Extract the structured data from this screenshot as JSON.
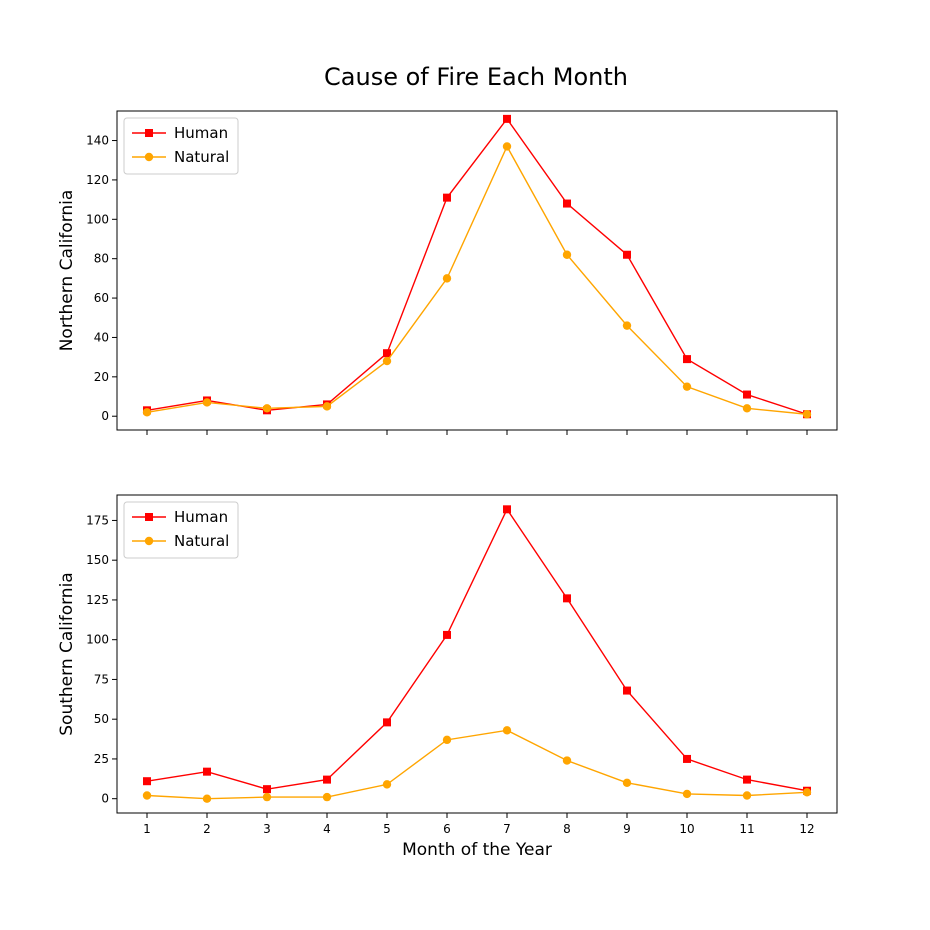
{
  "title": "Cause of Fire Each Month",
  "chart_data": [
    {
      "type": "line",
      "ylabel": "Northern California",
      "xlabel": "",
      "x": [
        1,
        2,
        3,
        4,
        5,
        6,
        7,
        8,
        9,
        10,
        11,
        12
      ],
      "xlim": [
        0.5,
        12.5
      ],
      "ylim": [
        -7,
        155
      ],
      "yticks": [
        0,
        20,
        40,
        60,
        80,
        100,
        120,
        140
      ],
      "show_x_tick_labels": false,
      "legend_position": "top-left",
      "series": [
        {
          "name": "Human",
          "color": "#ff0000",
          "marker": "square",
          "values": [
            3,
            8,
            3,
            6,
            32,
            111,
            151,
            108,
            82,
            29,
            11,
            1
          ]
        },
        {
          "name": "Natural",
          "color": "#ffa500",
          "marker": "circle",
          "values": [
            2,
            7,
            4,
            5,
            28,
            70,
            137,
            82,
            46,
            15,
            4,
            1
          ]
        }
      ]
    },
    {
      "type": "line",
      "ylabel": "Southern California",
      "xlabel": "Month of the Year",
      "x": [
        1,
        2,
        3,
        4,
        5,
        6,
        7,
        8,
        9,
        10,
        11,
        12
      ],
      "xlim": [
        0.5,
        12.5
      ],
      "ylim": [
        -9,
        191
      ],
      "yticks": [
        0,
        25,
        50,
        75,
        100,
        125,
        150,
        175
      ],
      "show_x_tick_labels": true,
      "legend_position": "top-left",
      "series": [
        {
          "name": "Human",
          "color": "#ff0000",
          "marker": "square",
          "values": [
            11,
            17,
            6,
            12,
            48,
            103,
            182,
            126,
            68,
            25,
            12,
            5
          ]
        },
        {
          "name": "Natural",
          "color": "#ffa500",
          "marker": "circle",
          "values": [
            2,
            0,
            1,
            1,
            9,
            37,
            43,
            24,
            10,
            3,
            2,
            4
          ]
        }
      ]
    }
  ]
}
